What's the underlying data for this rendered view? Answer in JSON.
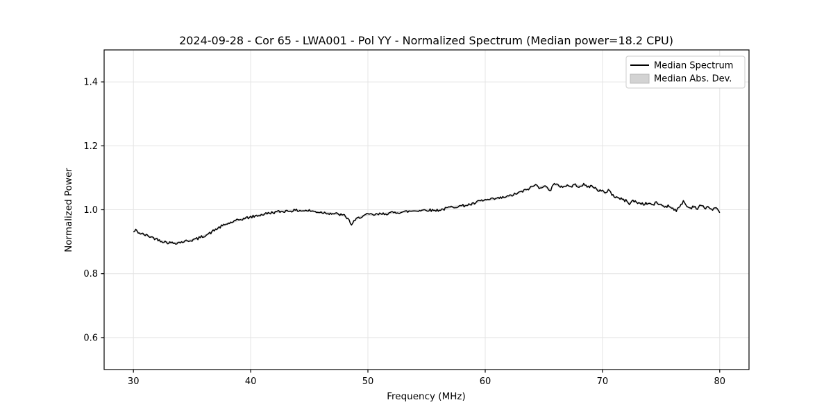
{
  "figure": {
    "background": "#ffffff",
    "plot_border_color": "#000000"
  },
  "chart_data": {
    "type": "line",
    "title": "2024-09-28 - Cor 65 - LWA001 - Pol YY - Normalized Spectrum (Median power=18.2 CPU)",
    "xlabel": "Frequency (MHz)",
    "ylabel": "Normalized Power",
    "xlim": [
      27.5,
      82.5
    ],
    "ylim": [
      0.5,
      1.5
    ],
    "xticks": [
      30,
      40,
      50,
      60,
      70,
      80
    ],
    "yticks": [
      0.6,
      0.8,
      1.0,
      1.2,
      1.4
    ],
    "grid": true,
    "grid_color": "#e4e4e4",
    "line_color": "#000000",
    "line_width": 1.5,
    "noise_amplitude": 0.0045,
    "legend": {
      "position": "upper right",
      "entries": [
        {
          "label": "Median Spectrum",
          "type": "line",
          "color": "#000000"
        },
        {
          "label": "Median Abs. Dev.",
          "type": "patch",
          "color": "#d3d3d3",
          "edge": "#b8b8b8"
        }
      ]
    },
    "mad_band": {
      "color": "#d3d3d3",
      "half_width": 0.003
    },
    "series": [
      {
        "name": "Median Spectrum",
        "color": "#000000",
        "x": [
          30.0,
          30.2,
          30.5,
          31.0,
          31.5,
          32.0,
          32.5,
          33.0,
          33.5,
          34.0,
          34.5,
          35.0,
          35.5,
          36.0,
          36.5,
          37.0,
          37.5,
          38.0,
          38.5,
          39.0,
          39.5,
          40.0,
          40.5,
          41.0,
          41.5,
          42.0,
          42.5,
          43.0,
          43.5,
          44.0,
          44.5,
          45.0,
          45.5,
          46.0,
          46.5,
          47.0,
          47.5,
          48.0,
          48.3,
          48.6,
          48.8,
          49.0,
          49.3,
          49.6,
          50.0,
          50.5,
          51.0,
          51.5,
          52.0,
          52.5,
          53.0,
          53.5,
          54.0,
          54.5,
          55.0,
          55.5,
          56.0,
          56.5,
          57.0,
          57.5,
          58.0,
          58.5,
          59.0,
          59.5,
          60.0,
          60.5,
          61.0,
          61.5,
          62.0,
          62.5,
          63.0,
          63.5,
          64.0,
          64.3,
          64.6,
          65.0,
          65.3,
          65.6,
          65.8,
          66.2,
          66.6,
          67.0,
          67.3,
          67.6,
          68.0,
          68.4,
          68.7,
          69.0,
          69.3,
          69.6,
          70.0,
          70.3,
          70.5,
          70.8,
          71.0,
          71.5,
          72.0,
          72.3,
          72.6,
          73.0,
          73.5,
          74.0,
          74.3,
          74.6,
          75.0,
          75.3,
          75.6,
          76.0,
          76.3,
          76.6,
          76.9,
          77.2,
          77.5,
          77.8,
          78.1,
          78.4,
          78.7,
          79.0,
          79.3,
          79.6,
          80.0
        ],
        "y": [
          0.93,
          0.936,
          0.927,
          0.921,
          0.915,
          0.908,
          0.901,
          0.897,
          0.896,
          0.898,
          0.902,
          0.905,
          0.91,
          0.918,
          0.926,
          0.938,
          0.948,
          0.956,
          0.962,
          0.968,
          0.973,
          0.977,
          0.981,
          0.985,
          0.989,
          0.992,
          0.994,
          0.996,
          0.997,
          0.998,
          0.997,
          0.997,
          0.994,
          0.992,
          0.99,
          0.988,
          0.986,
          0.981,
          0.972,
          0.953,
          0.962,
          0.97,
          0.977,
          0.981,
          0.985,
          0.984,
          0.986,
          0.988,
          0.99,
          0.992,
          0.993,
          0.995,
          0.997,
          0.998,
          1.0,
          0.998,
          0.999,
          1.002,
          1.008,
          1.01,
          1.012,
          1.015,
          1.018,
          1.027,
          1.03,
          1.032,
          1.035,
          1.038,
          1.042,
          1.048,
          1.055,
          1.062,
          1.072,
          1.078,
          1.07,
          1.074,
          1.068,
          1.062,
          1.08,
          1.076,
          1.072,
          1.076,
          1.072,
          1.078,
          1.074,
          1.078,
          1.072,
          1.074,
          1.07,
          1.062,
          1.058,
          1.05,
          1.066,
          1.048,
          1.042,
          1.035,
          1.028,
          1.02,
          1.028,
          1.022,
          1.018,
          1.02,
          1.015,
          1.022,
          1.015,
          1.01,
          1.012,
          1.005,
          0.998,
          1.008,
          1.028,
          1.01,
          1.005,
          1.012,
          1.002,
          1.015,
          1.005,
          1.01,
          1.0,
          1.005,
          0.995
        ]
      }
    ]
  }
}
